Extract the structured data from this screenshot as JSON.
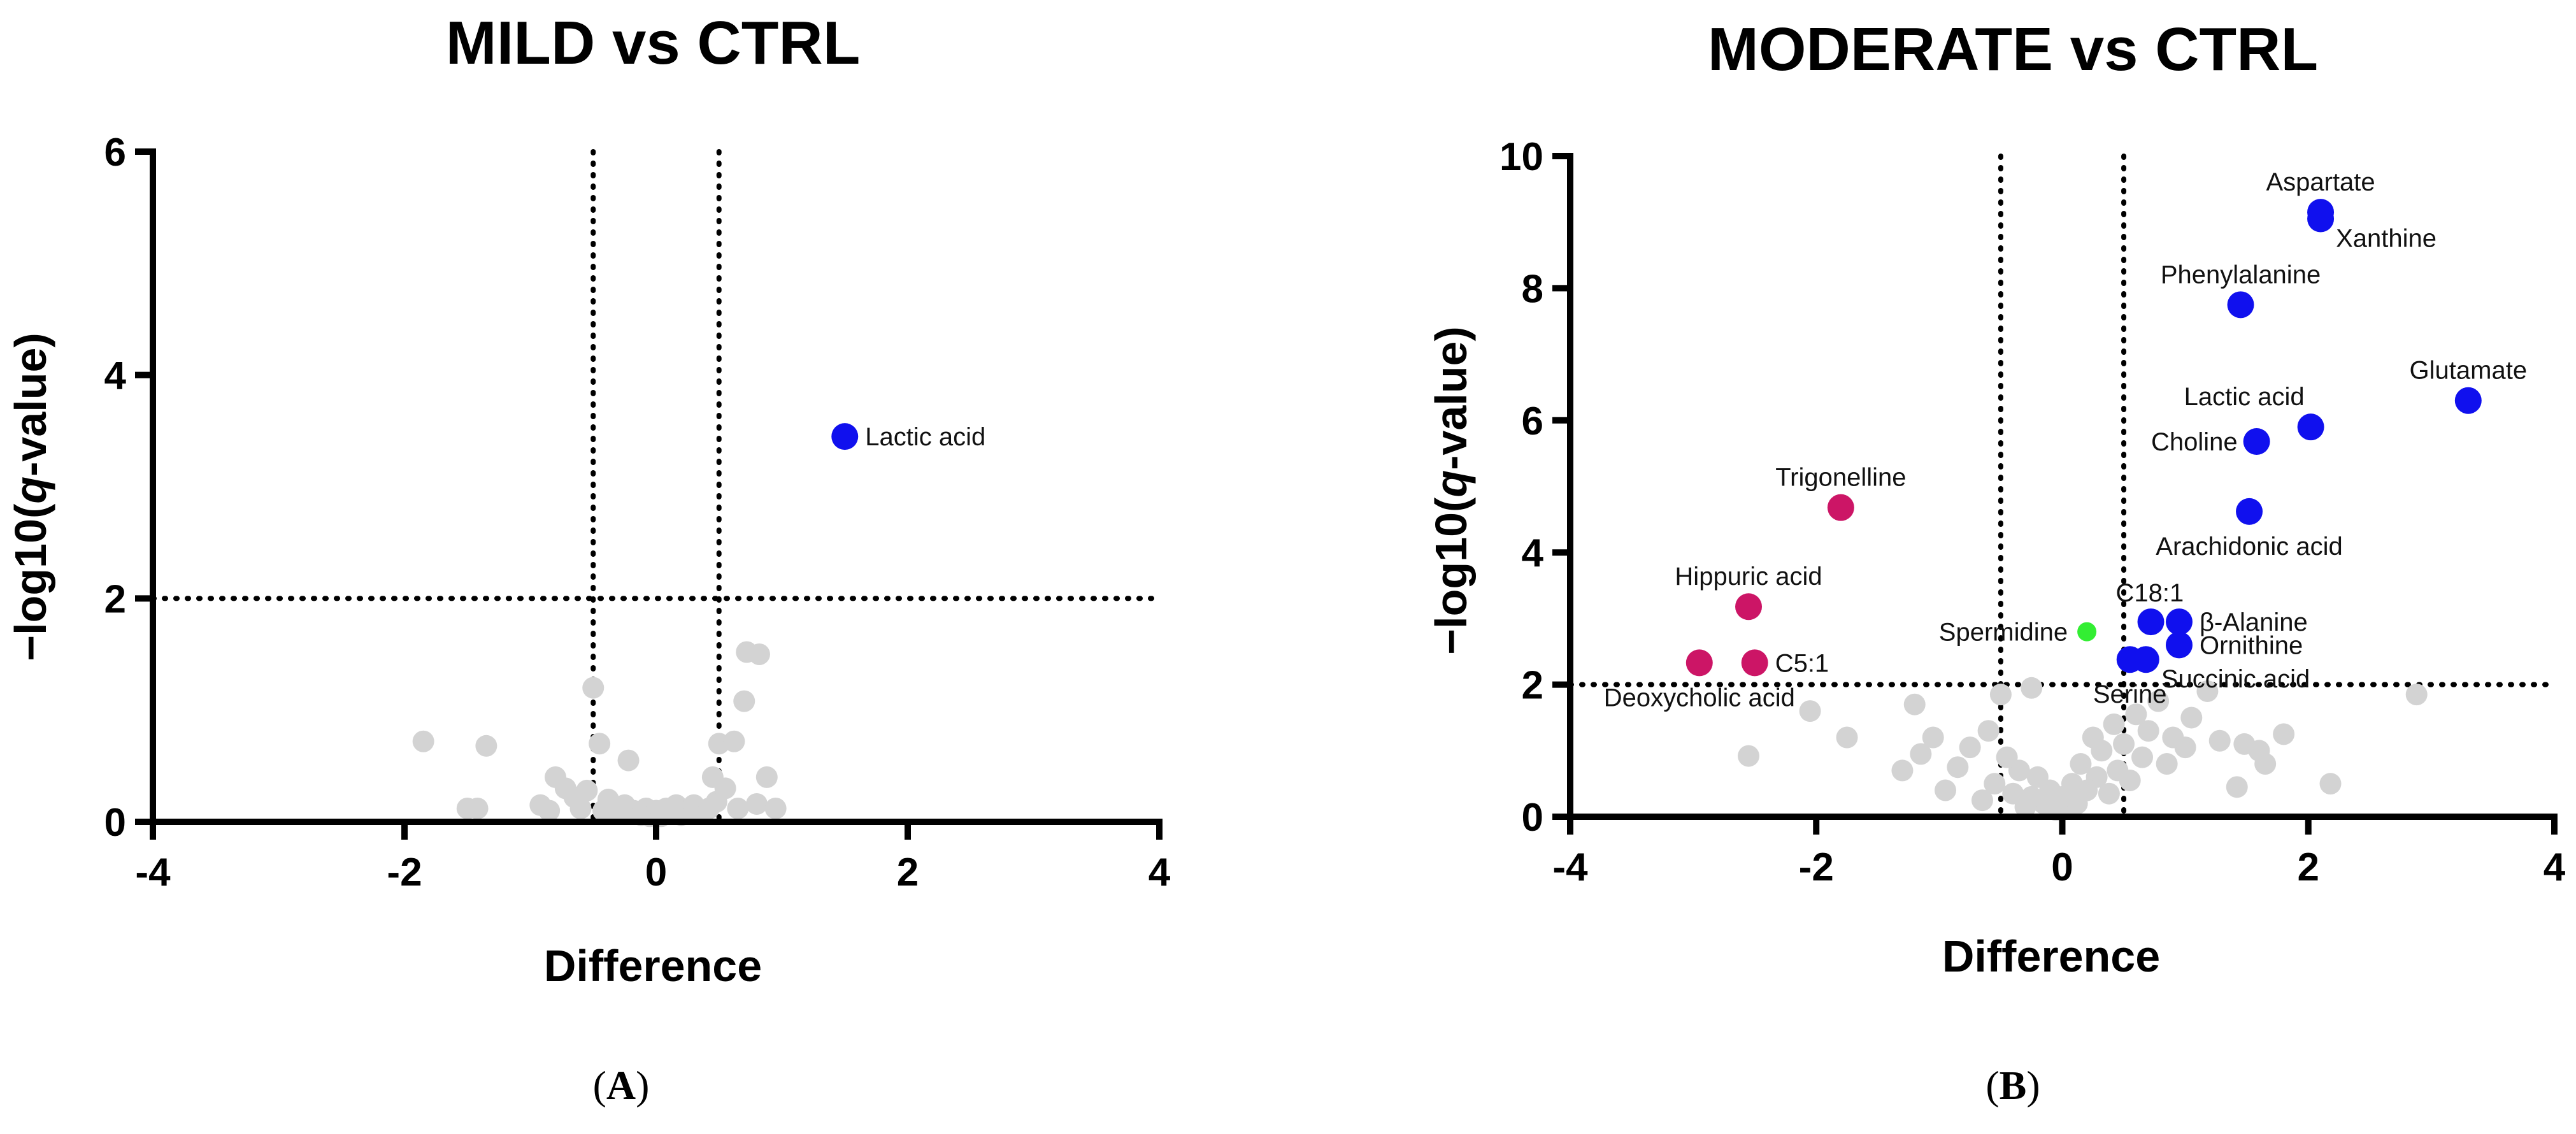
{
  "chart_data": [
    {
      "type": "scatter",
      "panel_label": "A",
      "title": "MILD vs CTRL",
      "xlabel": "Difference",
      "ylabel_parts": [
        "−log10(",
        "q",
        "-value)"
      ],
      "xlim": [
        -4,
        4
      ],
      "ylim": [
        0,
        6
      ],
      "xticks": [
        -4,
        -2,
        0,
        2,
        4
      ],
      "yticks": [
        0,
        2,
        4,
        6
      ],
      "x_thresholds": [
        -0.5,
        0.5
      ],
      "y_threshold": 2,
      "colors": {
        "up": "#1010ee",
        "down": "#cc1566",
        "neutral": "#d3d3d3",
        "other": "#33ee33"
      },
      "points": [
        {
          "x": 1.5,
          "y": 3.45,
          "color": "up",
          "label": "Lactic acid",
          "label_pos": "right"
        },
        {
          "x": -1.85,
          "y": 0.72,
          "color": "neutral"
        },
        {
          "x": -1.35,
          "y": 0.68,
          "color": "neutral"
        },
        {
          "x": -1.5,
          "y": 0.12,
          "color": "neutral"
        },
        {
          "x": -1.42,
          "y": 0.12,
          "color": "neutral"
        },
        {
          "x": -0.92,
          "y": 0.15,
          "color": "neutral"
        },
        {
          "x": -0.85,
          "y": 0.1,
          "color": "neutral"
        },
        {
          "x": -0.8,
          "y": 0.4,
          "color": "neutral"
        },
        {
          "x": -0.72,
          "y": 0.3,
          "color": "neutral"
        },
        {
          "x": -0.65,
          "y": 0.22,
          "color": "neutral"
        },
        {
          "x": -0.6,
          "y": 0.12,
          "color": "neutral"
        },
        {
          "x": -0.55,
          "y": 0.28,
          "color": "neutral"
        },
        {
          "x": -0.5,
          "y": 1.2,
          "color": "neutral"
        },
        {
          "x": -0.45,
          "y": 0.7,
          "color": "neutral"
        },
        {
          "x": -0.42,
          "y": 0.1,
          "color": "neutral"
        },
        {
          "x": -0.38,
          "y": 0.2,
          "color": "neutral"
        },
        {
          "x": -0.3,
          "y": 0.08,
          "color": "neutral"
        },
        {
          "x": -0.25,
          "y": 0.15,
          "color": "neutral"
        },
        {
          "x": -0.22,
          "y": 0.55,
          "color": "neutral"
        },
        {
          "x": -0.18,
          "y": 0.1,
          "color": "neutral"
        },
        {
          "x": -0.12,
          "y": 0.06,
          "color": "neutral"
        },
        {
          "x": -0.08,
          "y": 0.12,
          "color": "neutral"
        },
        {
          "x": -0.05,
          "y": 0.05,
          "color": "neutral"
        },
        {
          "x": 0.0,
          "y": 0.1,
          "color": "neutral"
        },
        {
          "x": 0.04,
          "y": 0.05,
          "color": "neutral"
        },
        {
          "x": 0.08,
          "y": 0.12,
          "color": "neutral"
        },
        {
          "x": 0.12,
          "y": 0.08,
          "color": "neutral"
        },
        {
          "x": 0.16,
          "y": 0.15,
          "color": "neutral"
        },
        {
          "x": 0.2,
          "y": 0.06,
          "color": "neutral"
        },
        {
          "x": 0.25,
          "y": 0.1,
          "color": "neutral"
        },
        {
          "x": 0.3,
          "y": 0.15,
          "color": "neutral"
        },
        {
          "x": 0.35,
          "y": 0.08,
          "color": "neutral"
        },
        {
          "x": 0.42,
          "y": 0.12,
          "color": "neutral"
        },
        {
          "x": 0.45,
          "y": 0.4,
          "color": "neutral"
        },
        {
          "x": 0.48,
          "y": 0.18,
          "color": "neutral"
        },
        {
          "x": 0.5,
          "y": 0.7,
          "color": "neutral"
        },
        {
          "x": 0.55,
          "y": 0.3,
          "color": "neutral"
        },
        {
          "x": 0.62,
          "y": 0.72,
          "color": "neutral"
        },
        {
          "x": 0.65,
          "y": 0.12,
          "color": "neutral"
        },
        {
          "x": 0.7,
          "y": 1.08,
          "color": "neutral"
        },
        {
          "x": 0.72,
          "y": 1.52,
          "color": "neutral"
        },
        {
          "x": 0.8,
          "y": 0.16,
          "color": "neutral"
        },
        {
          "x": 0.82,
          "y": 1.5,
          "color": "neutral"
        },
        {
          "x": 0.88,
          "y": 0.4,
          "color": "neutral"
        },
        {
          "x": 0.95,
          "y": 0.12,
          "color": "neutral"
        }
      ]
    },
    {
      "type": "scatter",
      "panel_label": "B",
      "title": "MODERATE vs CTRL",
      "xlabel": "Difference",
      "ylabel_parts": [
        "−log10(",
        "q",
        "-value)"
      ],
      "xlim": [
        -4,
        4
      ],
      "ylim": [
        0,
        10
      ],
      "xticks": [
        -4,
        -2,
        0,
        2,
        4
      ],
      "yticks": [
        0,
        2,
        4,
        6,
        8,
        10
      ],
      "x_thresholds": [
        -0.5,
        0.5
      ],
      "y_threshold": 2,
      "colors": {
        "up": "#1010ee",
        "down": "#cc1566",
        "neutral": "#d3d3d3",
        "other": "#33ee33"
      },
      "points": [
        {
          "x": 2.1,
          "y": 9.15,
          "color": "up",
          "label": "Aspartate",
          "label_pos": "above"
        },
        {
          "x": 2.1,
          "y": 9.05,
          "color": "up",
          "label": "Xanthine",
          "label_pos": "right-below"
        },
        {
          "x": 1.45,
          "y": 7.75,
          "color": "up",
          "label": "Phenylalanine",
          "label_pos": "above"
        },
        {
          "x": 3.3,
          "y": 6.3,
          "color": "up",
          "label": "Glutamate",
          "label_pos": "above"
        },
        {
          "x": 2.02,
          "y": 5.9,
          "color": "up",
          "label": "Lactic acid",
          "label_pos": "above-left"
        },
        {
          "x": 1.58,
          "y": 5.68,
          "color": "up",
          "label": "Choline",
          "label_pos": "left"
        },
        {
          "x": 1.52,
          "y": 4.62,
          "color": "up",
          "label": "Arachidonic acid",
          "label_pos": "below"
        },
        {
          "x": 0.72,
          "y": 2.95,
          "color": "up",
          "label": "C18:1",
          "label_pos": "above-left-c18"
        },
        {
          "x": 0.95,
          "y": 2.95,
          "color": "up",
          "label": "β-Alanine",
          "label_pos": "right"
        },
        {
          "x": 0.95,
          "y": 2.6,
          "color": "up",
          "label": "Ornithine",
          "label_pos": "right"
        },
        {
          "x": 0.68,
          "y": 2.38,
          "color": "up",
          "label": "Succinic acid",
          "label_pos": "right-below"
        },
        {
          "x": 0.55,
          "y": 2.38,
          "color": "up",
          "label": "Serine",
          "label_pos": "below"
        },
        {
          "x": 0.2,
          "y": 2.8,
          "color": "other",
          "label": "Spermidine",
          "label_pos": "left"
        },
        {
          "x": -1.8,
          "y": 4.68,
          "color": "down",
          "label": "Trigonelline",
          "label_pos": "above"
        },
        {
          "x": -2.55,
          "y": 3.18,
          "color": "down",
          "label": "Hippuric acid",
          "label_pos": "above"
        },
        {
          "x": -2.95,
          "y": 2.33,
          "color": "down",
          "label": "Deoxycholic acid",
          "label_pos": "below"
        },
        {
          "x": -2.5,
          "y": 2.33,
          "color": "down",
          "label": "C5:1",
          "label_pos": "right"
        },
        {
          "x": 2.88,
          "y": 1.85,
          "color": "neutral"
        },
        {
          "x": 2.18,
          "y": 0.5,
          "color": "neutral"
        },
        {
          "x": 1.8,
          "y": 1.25,
          "color": "neutral"
        },
        {
          "x": 1.6,
          "y": 1.0,
          "color": "neutral"
        },
        {
          "x": 1.65,
          "y": 0.8,
          "color": "neutral"
        },
        {
          "x": 1.48,
          "y": 1.1,
          "color": "neutral"
        },
        {
          "x": 1.42,
          "y": 0.45,
          "color": "neutral"
        },
        {
          "x": 1.28,
          "y": 1.15,
          "color": "neutral"
        },
        {
          "x": 1.18,
          "y": 1.9,
          "color": "neutral"
        },
        {
          "x": 1.05,
          "y": 1.5,
          "color": "neutral"
        },
        {
          "x": 1.0,
          "y": 1.05,
          "color": "neutral"
        },
        {
          "x": 0.9,
          "y": 1.2,
          "color": "neutral"
        },
        {
          "x": 0.85,
          "y": 0.8,
          "color": "neutral"
        },
        {
          "x": 0.78,
          "y": 1.75,
          "color": "neutral"
        },
        {
          "x": 0.7,
          "y": 1.3,
          "color": "neutral"
        },
        {
          "x": 0.65,
          "y": 0.9,
          "color": "neutral"
        },
        {
          "x": 0.6,
          "y": 1.55,
          "color": "neutral"
        },
        {
          "x": 0.55,
          "y": 0.55,
          "color": "neutral"
        },
        {
          "x": 0.5,
          "y": 1.1,
          "color": "neutral"
        },
        {
          "x": 0.45,
          "y": 0.7,
          "color": "neutral"
        },
        {
          "x": 0.42,
          "y": 1.4,
          "color": "neutral"
        },
        {
          "x": 0.38,
          "y": 0.35,
          "color": "neutral"
        },
        {
          "x": 0.32,
          "y": 1.0,
          "color": "neutral"
        },
        {
          "x": 0.28,
          "y": 0.6,
          "color": "neutral"
        },
        {
          "x": 0.25,
          "y": 1.2,
          "color": "neutral"
        },
        {
          "x": 0.2,
          "y": 0.4,
          "color": "neutral"
        },
        {
          "x": 0.15,
          "y": 0.8,
          "color": "neutral"
        },
        {
          "x": 0.12,
          "y": 0.2,
          "color": "neutral"
        },
        {
          "x": 0.08,
          "y": 0.5,
          "color": "neutral"
        },
        {
          "x": 0.05,
          "y": 0.15,
          "color": "neutral"
        },
        {
          "x": 0.0,
          "y": 0.3,
          "color": "neutral"
        },
        {
          "x": -0.05,
          "y": 0.1,
          "color": "neutral"
        },
        {
          "x": -0.1,
          "y": 0.4,
          "color": "neutral"
        },
        {
          "x": -0.15,
          "y": 0.2,
          "color": "neutral"
        },
        {
          "x": -0.2,
          "y": 0.6,
          "color": "neutral"
        },
        {
          "x": -0.25,
          "y": 0.3,
          "color": "neutral"
        },
        {
          "x": -0.3,
          "y": 0.15,
          "color": "neutral"
        },
        {
          "x": -0.35,
          "y": 0.7,
          "color": "neutral"
        },
        {
          "x": -0.4,
          "y": 0.35,
          "color": "neutral"
        },
        {
          "x": -0.45,
          "y": 0.9,
          "color": "neutral"
        },
        {
          "x": -0.5,
          "y": 1.85,
          "color": "neutral"
        },
        {
          "x": -0.55,
          "y": 0.5,
          "color": "neutral"
        },
        {
          "x": -0.6,
          "y": 1.3,
          "color": "neutral"
        },
        {
          "x": -0.65,
          "y": 0.25,
          "color": "neutral"
        },
        {
          "x": -0.75,
          "y": 1.05,
          "color": "neutral"
        },
        {
          "x": -0.85,
          "y": 0.75,
          "color": "neutral"
        },
        {
          "x": -0.95,
          "y": 0.4,
          "color": "neutral"
        },
        {
          "x": -1.05,
          "y": 1.2,
          "color": "neutral"
        },
        {
          "x": -1.15,
          "y": 0.95,
          "color": "neutral"
        },
        {
          "x": -1.3,
          "y": 0.7,
          "color": "neutral"
        },
        {
          "x": -1.2,
          "y": 1.7,
          "color": "neutral"
        },
        {
          "x": -1.75,
          "y": 1.2,
          "color": "neutral"
        },
        {
          "x": -2.05,
          "y": 1.6,
          "color": "neutral"
        },
        {
          "x": -2.55,
          "y": 0.92,
          "color": "neutral"
        },
        {
          "x": -0.25,
          "y": 1.95,
          "color": "neutral"
        }
      ]
    }
  ]
}
